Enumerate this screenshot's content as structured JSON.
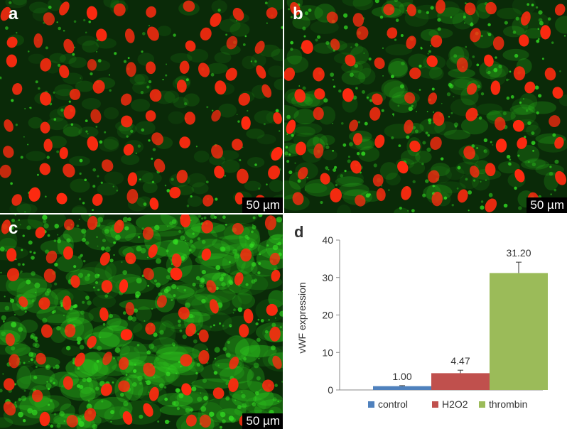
{
  "panels": {
    "a": {
      "letter": "a",
      "scale_label": "50 µm",
      "signal": "low"
    },
    "b": {
      "letter": "b",
      "scale_label": "50 µm",
      "signal": "medium"
    },
    "c": {
      "letter": "c",
      "scale_label": "50 µm",
      "signal": "high"
    },
    "d": {
      "letter": "d"
    }
  },
  "chart_data": {
    "type": "bar",
    "categories": [
      "control",
      "H2O2",
      "thrombin"
    ],
    "values": [
      1.0,
      4.47,
      31.2
    ],
    "value_labels": [
      "1.00",
      "4.47",
      "31.20"
    ],
    "error": [
      0.15,
      0.8,
      2.9
    ],
    "colors": [
      "#4f81bd",
      "#c0504d",
      "#9bbb59"
    ],
    "ylabel": "vWF expression",
    "ylim": [
      0,
      40
    ],
    "yticks": [
      "0",
      "10",
      "20",
      "30",
      "40"
    ],
    "legend_position": "bottom",
    "grid": false
  },
  "colors": {
    "nuclei": "#ff2a10",
    "vwf_stain": "#33dd22",
    "background": "#0a2a08"
  }
}
